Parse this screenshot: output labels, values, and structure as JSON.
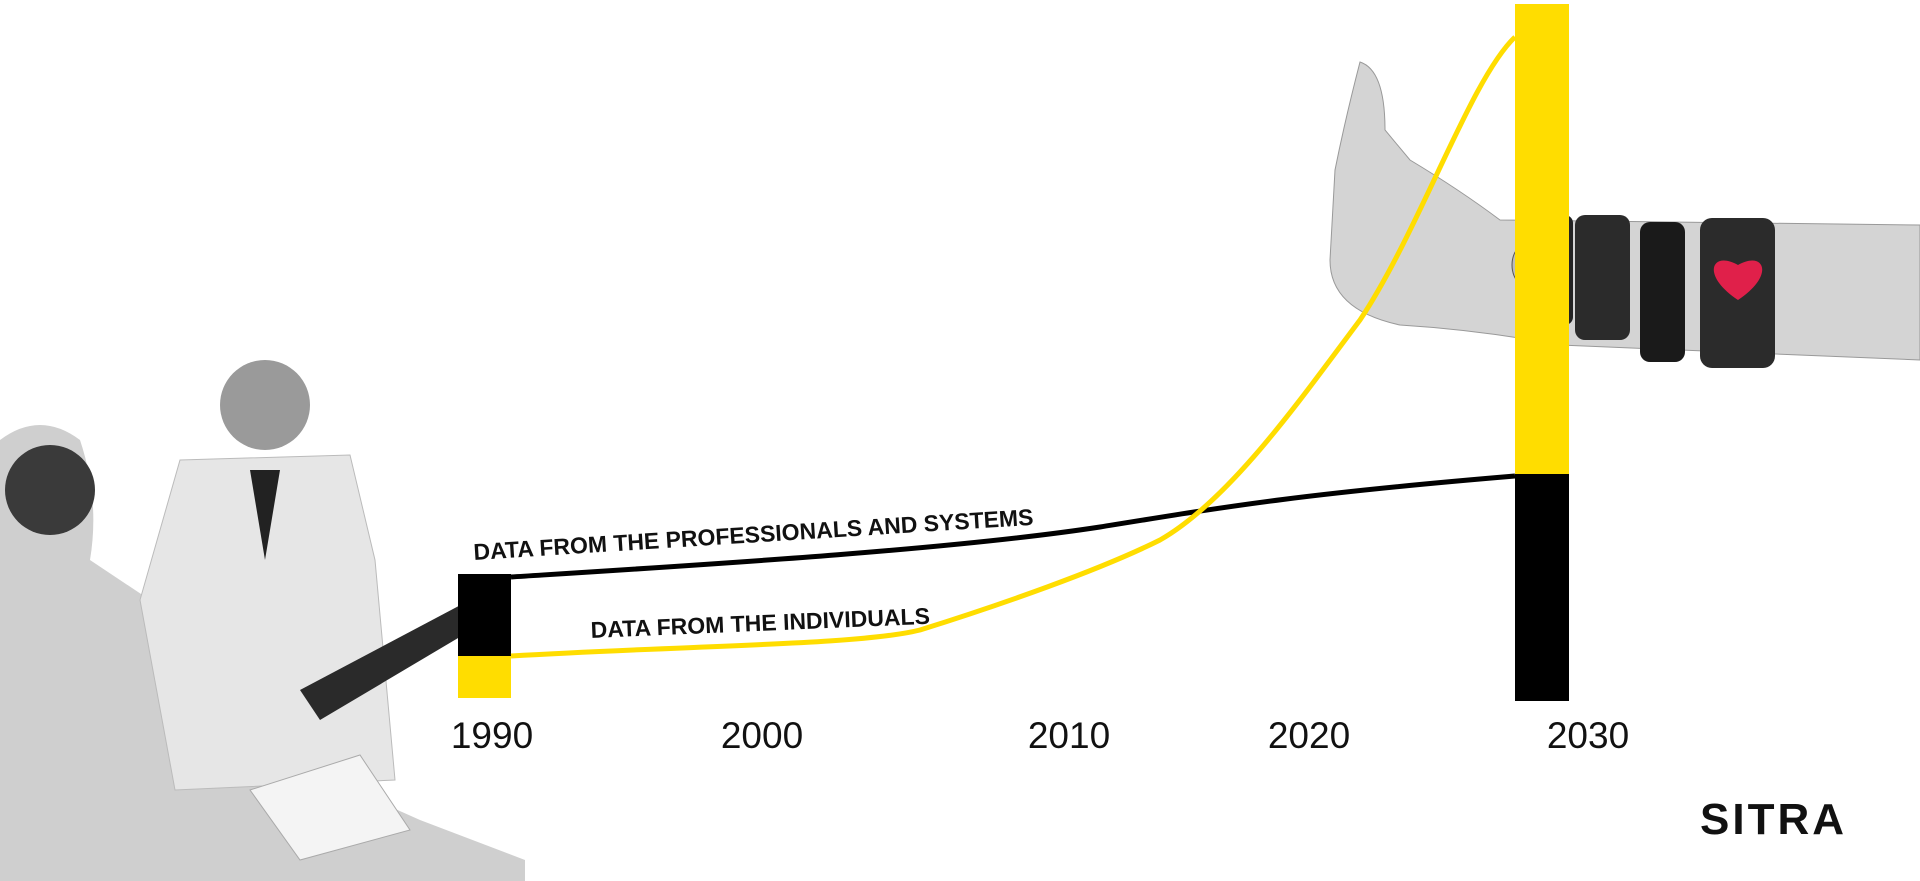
{
  "labels": {
    "professionals": "DATA FROM THE PROFESSIONALS AND SYSTEMS",
    "individuals": "DATA FROM THE INDIVIDUALS"
  },
  "years": [
    "1990",
    "2000",
    "2010",
    "2020",
    "2030"
  ],
  "logo": "SITRA"
}
